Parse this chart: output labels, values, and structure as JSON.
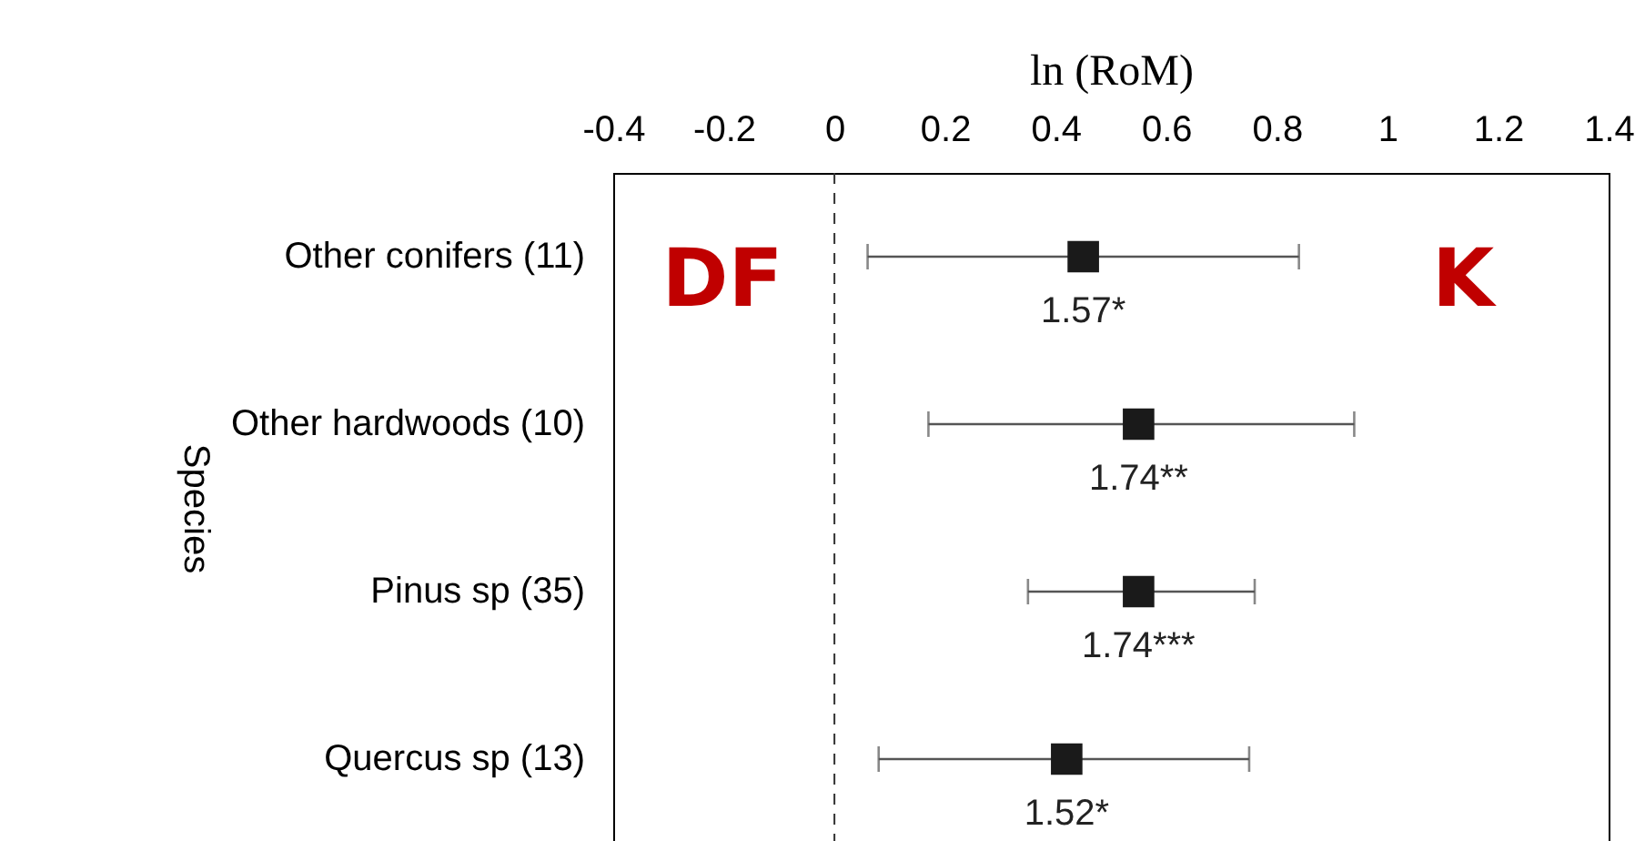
{
  "chart_data": {
    "type": "scatter",
    "orientation": "horizontal",
    "xlabel": "ln (RoM)",
    "ylabel": "Species",
    "categories": [
      "Other conifers (11)",
      "Other hardwoods (10)",
      "Pinus sp (35)",
      "Quercus sp (13)"
    ],
    "values": [
      0.45,
      0.55,
      0.55,
      0.42
    ],
    "errors": [
      [
        0.06,
        0.84
      ],
      [
        0.17,
        0.94
      ],
      [
        0.35,
        0.76
      ],
      [
        0.08,
        0.75
      ]
    ],
    "color": "#1a1a1a",
    "marker": "square",
    "xlim": [
      -0.4,
      1.4
    ],
    "xticks": [
      -0.4,
      -0.2,
      0,
      0.2,
      0.4,
      0.6,
      0.8,
      1,
      1.2,
      1.4
    ],
    "ref_lines": [
      {
        "axis": "x",
        "value": 0,
        "line_style": "dashed",
        "color": "#333333"
      }
    ],
    "annotations": [
      "DF",
      "K",
      {
        "text": "1.57*",
        "x": 0.45,
        "y": "Other conifers (11)"
      },
      {
        "text": "1.74**",
        "x": 0.55,
        "y": "Other hardwoods (10)"
      },
      {
        "text": "1.74***",
        "x": 0.55,
        "y": "Pinus sp (35)"
      },
      {
        "text": "1.52*",
        "x": 0.42,
        "y": "Quercus sp (13)"
      }
    ],
    "grid": false
  }
}
